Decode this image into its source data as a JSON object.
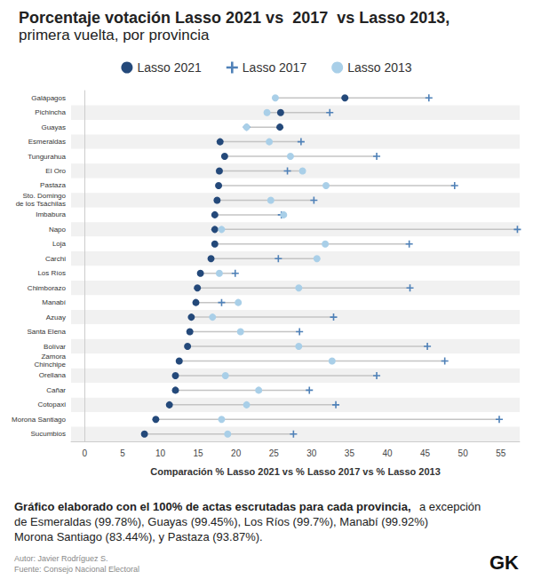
{
  "chart_data": {
    "type": "scatter",
    "orientation": "horizontal",
    "title": "Porcentaje votación Lasso 2021 vs  2017  vs Lasso 2013,",
    "subtitle": "primera vuelta, por provincia",
    "xlabel": "Comparación % Lasso 2021 vs % Lasso 2017 vs % Lasso 2013",
    "annotations": [
      "Gráfico elaborado con el 100% de actas escrutadas para cada provincia,",
      "a excepción de Esmeraldas (99.78%), Guayas (99.45%), Los Ríos (99.7%), Manabí (99.92%) Morona Santiago (83.44%), y Pastaza (93.87%).",
      "Autor: Javier Rodríguez S.",
      "Fuente: Consejo Nacional Electoral",
      "GK"
    ],
    "categories": [
      "Galápagos",
      "Pichincha",
      "Guayas",
      "Esmeraldas",
      "Tungurahua",
      "El Oro",
      "Pastaza",
      "Sto. Domingo\nde los Tsáchilas",
      "Imbabura",
      "Napo",
      "Loja",
      "Carchi",
      "Los Ríos",
      "Chimborazo",
      "Manabí",
      "Azuay",
      "Santa Elena",
      "Bolívar",
      "Zamora\nChinchipe",
      "Orellana",
      "Cañar",
      "Cotopaxi",
      "Morona Santiago",
      "Sucumbios"
    ],
    "series": [
      {
        "name": "Lasso 2021",
        "color": "#24497a",
        "marker": "circle",
        "values": [
          34.4,
          25.9,
          25.8,
          17.9,
          18.5,
          17.8,
          17.7,
          17.5,
          17.2,
          17.2,
          17.2,
          16.7,
          15.3,
          14.9,
          14.7,
          14.1,
          13.9,
          13.6,
          12.5,
          12.0,
          12.0,
          11.2,
          9.4,
          7.9
        ]
      },
      {
        "name": "Lasso 2017",
        "color": "#4f81b8",
        "marker": "plus",
        "values": [
          45.5,
          32.4,
          21.4,
          28.6,
          38.6,
          26.8,
          48.9,
          30.3,
          26.0,
          57.2,
          42.9,
          25.6,
          19.9,
          43.0,
          18.1,
          32.9,
          28.4,
          45.3,
          47.6,
          38.6,
          29.7,
          33.2,
          54.8,
          27.6
        ]
      },
      {
        "name": "Lasso 2013",
        "color": "#a9cfe8",
        "marker": "circle",
        "values": [
          25.2,
          24.1,
          21.4,
          24.4,
          27.2,
          28.8,
          31.9,
          24.6,
          26.3,
          18.1,
          31.8,
          30.7,
          17.8,
          28.3,
          20.3,
          16.9,
          20.6,
          28.3,
          32.7,
          18.6,
          23.0,
          21.4,
          18.1,
          18.9
        ]
      }
    ],
    "xlim": [
      -1.8,
      57.5
    ],
    "xticks": [
      0,
      5,
      10,
      15,
      20,
      25,
      30,
      35,
      40,
      45,
      50,
      55
    ],
    "grid": false,
    "legend": "top"
  }
}
